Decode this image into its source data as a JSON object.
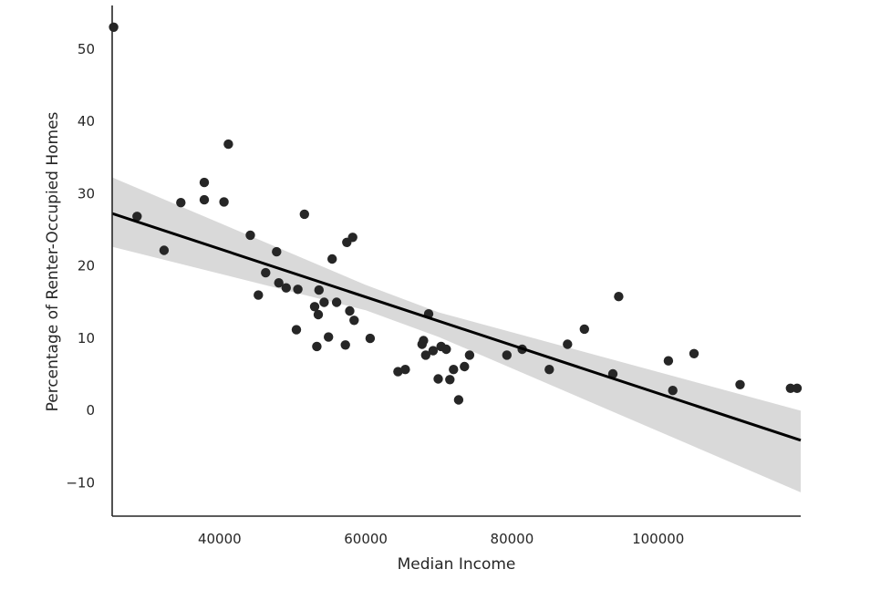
{
  "chart_data": {
    "type": "scatter",
    "title": "",
    "xlabel": "Median Income",
    "ylabel": "Percentage of Renter-Occupied Homes",
    "xlim": [
      25300,
      119500
    ],
    "ylim": [
      -14.7,
      56
    ],
    "xticks": [
      40000,
      60000,
      80000,
      100000
    ],
    "xtick_labels": [
      "40000",
      "60000",
      "80000",
      "100000"
    ],
    "yticks": [
      -10,
      0,
      10,
      20,
      30,
      40,
      50
    ],
    "ytick_labels": [
      "−10",
      "0",
      "10",
      "20",
      "30",
      "40",
      "50"
    ],
    "grid": false,
    "legend": "none",
    "colors": {
      "points": "#262626",
      "line": "#000000",
      "band": "#d9d9d9",
      "axis": "#262626"
    },
    "series": [
      {
        "kind": "points",
        "x": [
          25500,
          28700,
          32400,
          34700,
          37900,
          37900,
          40600,
          41200,
          44200,
          45300,
          46300,
          47800,
          48100,
          49100,
          50500,
          50700,
          51600,
          53000,
          53300,
          53500,
          53600,
          54300,
          54900,
          55400,
          56000,
          57200,
          57400,
          57800,
          58200,
          58400,
          60600,
          64400,
          65400,
          67700,
          67900,
          68200,
          68600,
          69200,
          69900,
          70300,
          71000,
          71500,
          72000,
          72700,
          73500,
          74200,
          79300,
          81400,
          85100,
          87600,
          89900,
          93800,
          94600,
          101400,
          102000,
          104900,
          111200,
          118100,
          119000
        ],
        "y": [
          53,
          26.8,
          22.1,
          28.7,
          31.5,
          29.1,
          28.8,
          36.8,
          24.2,
          15.9,
          19,
          21.9,
          17.6,
          16.9,
          11.1,
          16.7,
          27.1,
          14.3,
          8.8,
          13.2,
          16.6,
          14.9,
          10.1,
          20.9,
          14.9,
          9,
          23.2,
          13.7,
          23.9,
          12.4,
          9.9,
          5.3,
          5.6,
          9.1,
          9.6,
          7.6,
          13.3,
          8.2,
          4.3,
          8.8,
          8.4,
          4.2,
          5.6,
          1.4,
          6,
          7.6,
          7.6,
          8.4,
          5.6,
          9.1,
          11.2,
          5,
          15.7,
          6.8,
          2.7,
          7.8,
          3.5,
          3,
          3
        ]
      },
      {
        "kind": "regression",
        "x": [
          25300,
          119500
        ],
        "y": [
          27.2,
          -4.2
        ]
      },
      {
        "kind": "confidence_band",
        "x": [
          25300,
          60000,
          70000,
          119500
        ],
        "upper": [
          32.2,
          17.3,
          13.5,
          -0.1
        ],
        "lower": [
          22.6,
          13.8,
          10.1,
          -11.4
        ]
      }
    ]
  }
}
